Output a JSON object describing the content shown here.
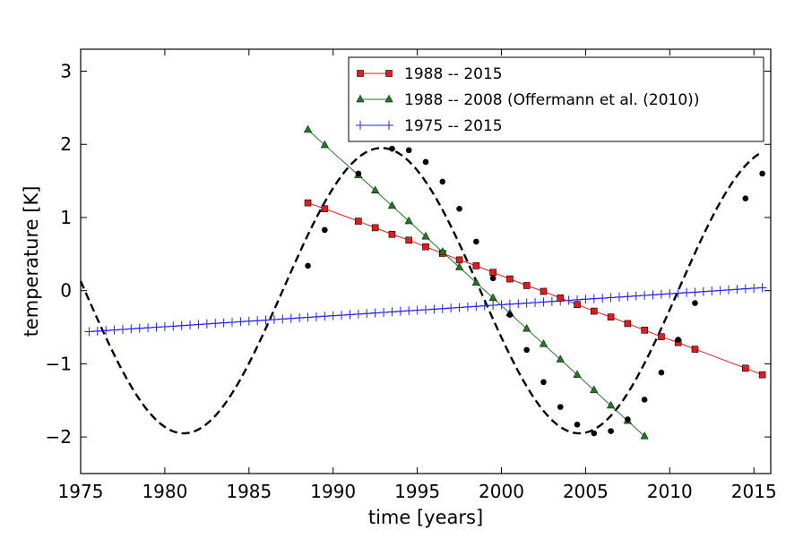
{
  "chart_data": {
    "type": "line",
    "xlabel": "time [years]",
    "ylabel": "temperature [K]",
    "xlim": [
      1975,
      2016
    ],
    "ylim": [
      -2.5,
      3.3
    ],
    "xticks": [
      1975,
      1980,
      1985,
      1990,
      1995,
      2000,
      2005,
      2010,
      2015
    ],
    "yticks": [
      -2,
      -1,
      0,
      1,
      2,
      3
    ],
    "xtick_labels": [
      "1975",
      "1980",
      "1985",
      "1990",
      "1995",
      "2000",
      "2005",
      "2010",
      "2015"
    ],
    "ytick_labels": [
      "−2",
      "−1",
      "0",
      "1",
      "2",
      "3"
    ],
    "grid": false,
    "legend_position": "top-right",
    "colors": {
      "red": "#d62728",
      "red_marker": "#e41a1c",
      "green": "#1f7a1f",
      "blue": "#2020ff",
      "black": "#000000"
    },
    "series": [
      {
        "name": "1988 -- 2015",
        "color": "#e41a1c",
        "marker": "square",
        "x": [
          1988.5,
          1989.5,
          1991.5,
          1992.5,
          1993.5,
          1994.5,
          1995.5,
          1996.5,
          1997.5,
          1998.5,
          1999.5,
          2000.5,
          2001.5,
          2002.5,
          2003.5,
          2004.5,
          2005.5,
          2006.5,
          2007.5,
          2008.5,
          2009.5,
          2010.5,
          2011.5,
          2014.5,
          2015.5
        ],
        "y": [
          1.2,
          1.12,
          0.95,
          0.86,
          0.77,
          0.69,
          0.6,
          0.51,
          0.42,
          0.34,
          0.25,
          0.16,
          0.07,
          -0.01,
          -0.1,
          -0.19,
          -0.28,
          -0.36,
          -0.45,
          -0.54,
          -0.63,
          -0.71,
          -0.8,
          -1.06,
          -1.15
        ]
      },
      {
        "name": "1988 -- 2008 (Offermann et al. (2010))",
        "color": "#1f7a1f",
        "marker": "triangle",
        "x": [
          1988.5,
          1989.5,
          1991.5,
          1992.5,
          1993.5,
          1994.5,
          1995.5,
          1996.5,
          1997.5,
          1998.5,
          1999.5,
          2000.5,
          2001.5,
          2002.5,
          2003.5,
          2004.5,
          2005.5,
          2006.5,
          2007.5,
          2008.5
        ],
        "y": [
          2.2,
          1.99,
          1.58,
          1.37,
          1.16,
          0.95,
          0.74,
          0.53,
          0.32,
          0.11,
          -0.1,
          -0.31,
          -0.52,
          -0.73,
          -0.94,
          -1.15,
          -1.36,
          -1.57,
          -1.78,
          -1.99
        ]
      },
      {
        "name": "1975 -- 2015",
        "color": "#2020ff",
        "marker": "plus",
        "x_start": 1975.5,
        "x_end": 2015.5,
        "x_step": 0.5,
        "y_start": -0.56,
        "y_end": 0.04
      },
      {
        "name": "",
        "color": "#000000",
        "style": "dashed",
        "amplitude": 1.95,
        "period": 23.5,
        "phase_zero": 1987.0,
        "x_range": [
          1975,
          2015.5
        ]
      },
      {
        "name": "",
        "color": "#000000",
        "marker": "circle",
        "x": [
          1988.5,
          1989.5,
          1991.5,
          1993.5,
          1994.5,
          1995.5,
          1996.5,
          1997.5,
          1998.5,
          1999.5,
          2000.5,
          2001.5,
          2002.5,
          2003.5,
          2004.5,
          2005.5,
          2006.5,
          2007.5,
          2008.5,
          2009.5,
          2010.5,
          2011.5,
          2014.5,
          2015.5
        ],
        "y": [
          0.34,
          0.83,
          1.6,
          1.94,
          1.92,
          1.76,
          1.49,
          1.12,
          0.67,
          0.17,
          -0.33,
          -0.81,
          -1.25,
          -1.59,
          -1.83,
          -1.95,
          -1.92,
          -1.76,
          -1.49,
          -1.12,
          -0.67,
          -0.17,
          1.26,
          1.6
        ]
      }
    ]
  }
}
